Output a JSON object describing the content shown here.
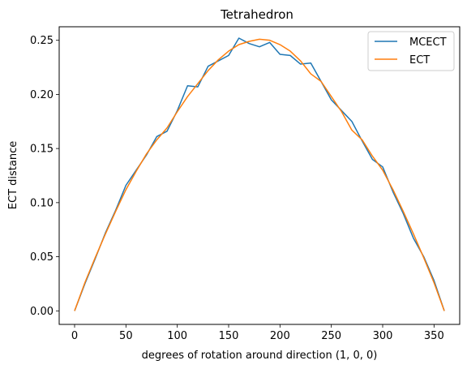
{
  "chart_data": {
    "type": "line",
    "title": "Tetrahedron",
    "xlabel": "degrees of rotation around direction (1, 0, 0)",
    "ylabel": "ECT distance",
    "xlim": [
      -15,
      375
    ],
    "ylim": [
      -0.0125,
      0.2625
    ],
    "xticks": [
      0,
      50,
      100,
      150,
      200,
      250,
      300,
      350
    ],
    "yticks": [
      0.0,
      0.05,
      0.1,
      0.15,
      0.2,
      0.25
    ],
    "ytick_labels": [
      "0.00",
      "0.05",
      "0.10",
      "0.15",
      "0.20",
      "0.25"
    ],
    "legend_position": "upper right",
    "grid": false,
    "series": [
      {
        "name": "MCECT",
        "color": "#1f77b4",
        "x": [
          0,
          10,
          20,
          30,
          40,
          50,
          60,
          70,
          80,
          90,
          100,
          110,
          120,
          130,
          140,
          150,
          160,
          170,
          180,
          190,
          200,
          210,
          220,
          230,
          240,
          250,
          260,
          270,
          280,
          290,
          300,
          310,
          320,
          330,
          340,
          350,
          360
        ],
        "values": [
          0.0,
          0.025,
          0.048,
          0.072,
          0.093,
          0.116,
          0.13,
          0.144,
          0.161,
          0.166,
          0.185,
          0.208,
          0.207,
          0.226,
          0.231,
          0.236,
          0.252,
          0.247,
          0.244,
          0.248,
          0.237,
          0.236,
          0.228,
          0.229,
          0.212,
          0.195,
          0.185,
          0.175,
          0.157,
          0.14,
          0.133,
          0.11,
          0.09,
          0.067,
          0.05,
          0.028,
          0.0
        ]
      },
      {
        "name": "ECT",
        "color": "#ff7f0e",
        "x": [
          0,
          10,
          20,
          30,
          40,
          50,
          60,
          70,
          80,
          90,
          100,
          110,
          120,
          130,
          140,
          150,
          160,
          170,
          180,
          190,
          200,
          210,
          220,
          230,
          240,
          250,
          260,
          270,
          280,
          290,
          300,
          310,
          320,
          330,
          340,
          350,
          360
        ],
        "values": [
          0.0,
          0.026,
          0.049,
          0.071,
          0.092,
          0.112,
          0.129,
          0.145,
          0.158,
          0.169,
          0.184,
          0.198,
          0.21,
          0.222,
          0.232,
          0.24,
          0.246,
          0.249,
          0.251,
          0.25,
          0.246,
          0.24,
          0.231,
          0.219,
          0.212,
          0.198,
          0.184,
          0.167,
          0.158,
          0.143,
          0.13,
          0.112,
          0.092,
          0.071,
          0.049,
          0.026,
          0.0
        ]
      }
    ]
  }
}
